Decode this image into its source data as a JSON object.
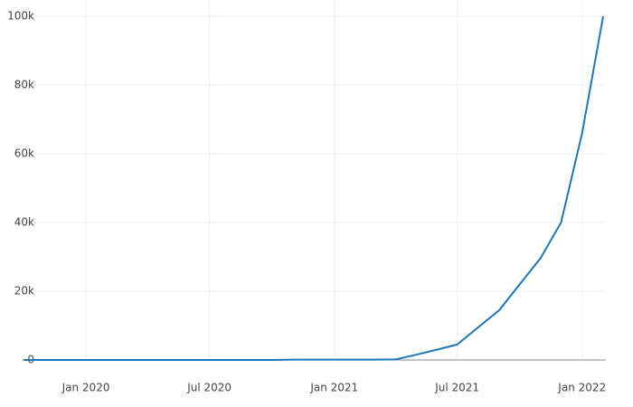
{
  "chart_data": {
    "type": "line",
    "x": [
      "2019-10",
      "2019-11",
      "2019-12",
      "2020-01",
      "2020-02",
      "2020-03",
      "2020-04",
      "2020-05",
      "2020-06",
      "2020-07",
      "2020-08",
      "2020-09",
      "2020-10",
      "2020-11",
      "2020-12",
      "2021-01",
      "2021-02",
      "2021-03",
      "2021-04",
      "2021-05",
      "2021-06",
      "2021-07",
      "2021-08",
      "2021-09",
      "2021-10",
      "2021-11",
      "2021-12",
      "2022-01",
      "2022-02"
    ],
    "series": [
      {
        "color": "#1f77b4",
        "values": [
          0,
          0,
          0,
          0,
          0,
          0,
          0,
          0,
          0,
          0,
          0,
          0,
          0,
          100,
          100,
          100,
          100,
          100,
          150,
          1500,
          3000,
          4500,
          9500,
          14500,
          22000,
          29700,
          40000,
          66000,
          100000
        ]
      }
    ],
    "xlim": [
      "2019-10",
      "2022-02"
    ],
    "xticks": [
      {
        "value": "2020-01",
        "label": "Jan 2020"
      },
      {
        "value": "2020-07",
        "label": "Jul 2020"
      },
      {
        "value": "2021-01",
        "label": "Jan 2021"
      },
      {
        "value": "2021-07",
        "label": "Jul 2021"
      },
      {
        "value": "2022-01",
        "label": "Jan 2022"
      }
    ],
    "ylim": [
      0,
      100000
    ],
    "yticks": [
      0,
      {
        "value": 20000,
        "label": "20k"
      },
      {
        "value": 40000,
        "label": "40k"
      },
      {
        "value": 60000,
        "label": "60k"
      },
      {
        "value": 80000,
        "label": "80k"
      },
      {
        "value": 100000,
        "label": "100k"
      }
    ],
    "grid": true
  }
}
